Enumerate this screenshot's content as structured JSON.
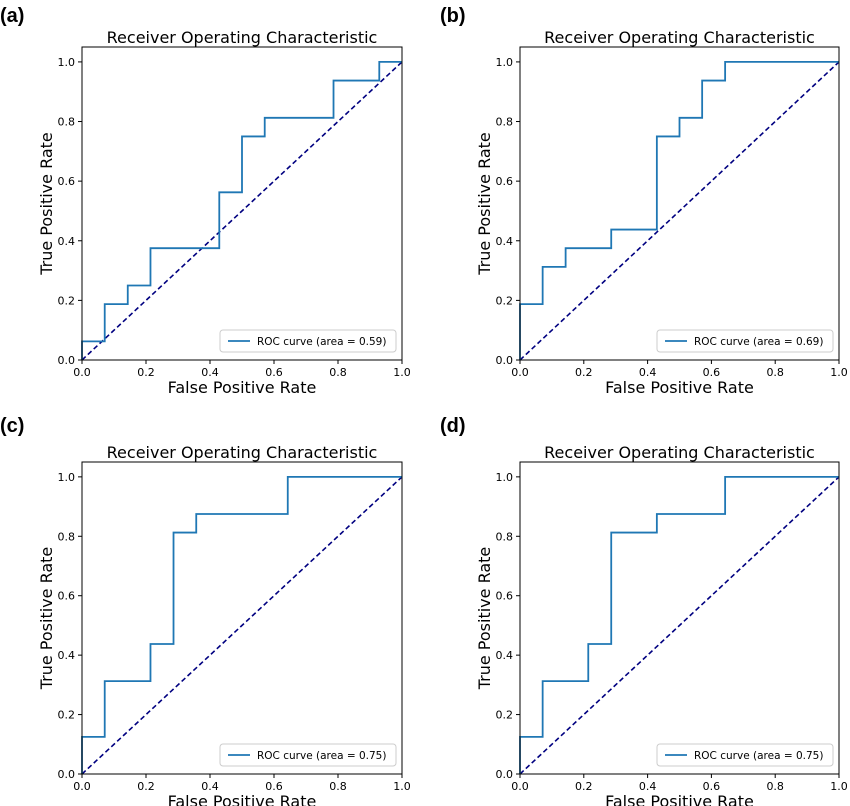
{
  "chart_data": [
    {
      "type": "line",
      "panel_label": "(a)",
      "title": "Receiver Operating Characteristic",
      "xlabel": "False Positive Rate",
      "ylabel": "True Positive Rate",
      "xlim": [
        0,
        1
      ],
      "ylim": [
        0,
        1.05
      ],
      "x_ticks": [
        "0.0",
        "0.2",
        "0.4",
        "0.6",
        "0.8",
        "1.0"
      ],
      "y_ticks": [
        "0.0",
        "0.2",
        "0.4",
        "0.6",
        "0.8",
        "1.0"
      ],
      "legend_position": "lower-right",
      "series": [
        {
          "name": "ROC curve (area = 0.59)",
          "color": "#1f77b4",
          "x": [
            0,
            0,
            0.071,
            0.071,
            0.143,
            0.143,
            0.214,
            0.214,
            0.429,
            0.429,
            0.5,
            0.5,
            0.571,
            0.571,
            0.786,
            0.786,
            0.929,
            0.929,
            1
          ],
          "y": [
            0,
            0.0625,
            0.0625,
            0.1875,
            0.1875,
            0.25,
            0.25,
            0.375,
            0.375,
            0.5625,
            0.5625,
            0.75,
            0.75,
            0.8125,
            0.8125,
            0.9375,
            0.9375,
            1,
            1
          ]
        }
      ],
      "reference_line": {
        "x": [
          0,
          1
        ],
        "y": [
          0,
          1
        ],
        "color": "#000080",
        "style": "dashed"
      }
    },
    {
      "type": "line",
      "panel_label": "(b)",
      "title": "Receiver Operating Characteristic",
      "xlabel": "False Positive Rate",
      "ylabel": "True Positive Rate",
      "xlim": [
        0,
        1
      ],
      "ylim": [
        0,
        1.05
      ],
      "x_ticks": [
        "0.0",
        "0.2",
        "0.4",
        "0.6",
        "0.8",
        "1.0"
      ],
      "y_ticks": [
        "0.0",
        "0.2",
        "0.4",
        "0.6",
        "0.8",
        "1.0"
      ],
      "legend_position": "lower-right",
      "series": [
        {
          "name": "ROC curve (area = 0.69)",
          "color": "#1f77b4",
          "x": [
            0,
            0,
            0.071,
            0.071,
            0.143,
            0.143,
            0.286,
            0.286,
            0.429,
            0.429,
            0.5,
            0.5,
            0.571,
            0.571,
            0.643,
            0.643,
            1
          ],
          "y": [
            0,
            0.1875,
            0.1875,
            0.3125,
            0.3125,
            0.375,
            0.375,
            0.4375,
            0.4375,
            0.75,
            0.75,
            0.8125,
            0.8125,
            0.9375,
            0.9375,
            1,
            1
          ]
        }
      ],
      "reference_line": {
        "x": [
          0,
          1
        ],
        "y": [
          0,
          1
        ],
        "color": "#000080",
        "style": "dashed"
      }
    },
    {
      "type": "line",
      "panel_label": "(c)",
      "title": "Receiver Operating Characteristic",
      "xlabel": "False Positive Rate",
      "ylabel": "True Positive Rate",
      "xlim": [
        0,
        1
      ],
      "ylim": [
        0,
        1.05
      ],
      "x_ticks": [
        "0.0",
        "0.2",
        "0.4",
        "0.6",
        "0.8",
        "1.0"
      ],
      "y_ticks": [
        "0.0",
        "0.2",
        "0.4",
        "0.6",
        "0.8",
        "1.0"
      ],
      "legend_position": "lower-right",
      "series": [
        {
          "name": "ROC curve (area = 0.75)",
          "color": "#1f77b4",
          "x": [
            0,
            0,
            0.071,
            0.071,
            0.214,
            0.214,
            0.286,
            0.286,
            0.357,
            0.357,
            0.643,
            0.643,
            1
          ],
          "y": [
            0,
            0.125,
            0.125,
            0.3125,
            0.3125,
            0.4375,
            0.4375,
            0.8125,
            0.8125,
            0.875,
            0.875,
            1,
            1
          ]
        }
      ],
      "reference_line": {
        "x": [
          0,
          1
        ],
        "y": [
          0,
          1
        ],
        "color": "#000080",
        "style": "dashed"
      }
    },
    {
      "type": "line",
      "panel_label": "(d)",
      "title": "Receiver Operating Characteristic",
      "xlabel": "False Positive Rate",
      "ylabel": "True Positive Rate",
      "xlim": [
        0,
        1
      ],
      "ylim": [
        0,
        1.05
      ],
      "x_ticks": [
        "0.0",
        "0.2",
        "0.4",
        "0.6",
        "0.8",
        "1.0"
      ],
      "y_ticks": [
        "0.0",
        "0.2",
        "0.4",
        "0.6",
        "0.8",
        "1.0"
      ],
      "legend_position": "lower-right",
      "series": [
        {
          "name": "ROC curve (area = 0.75)",
          "color": "#1f77b4",
          "x": [
            0,
            0,
            0.071,
            0.071,
            0.214,
            0.214,
            0.286,
            0.286,
            0.429,
            0.429,
            0.643,
            0.643,
            1
          ],
          "y": [
            0,
            0.125,
            0.125,
            0.3125,
            0.3125,
            0.4375,
            0.4375,
            0.8125,
            0.8125,
            0.875,
            0.875,
            1,
            1
          ]
        }
      ],
      "reference_line": {
        "x": [
          0,
          1
        ],
        "y": [
          0,
          1
        ],
        "color": "#000080",
        "style": "dashed"
      }
    }
  ]
}
